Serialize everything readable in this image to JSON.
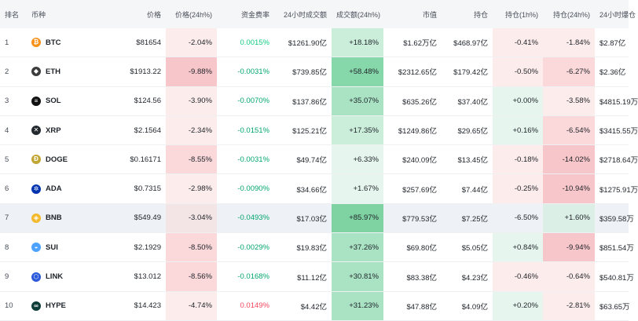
{
  "headers": {
    "rank": "排名",
    "coin": "币种",
    "price": "价格",
    "price_change": "价格(24h%)",
    "funding_rate": "资金费率",
    "volume": "24小时成交额",
    "volume_change": "成交额(24h%)",
    "market_cap": "市值",
    "open_interest": "持仓",
    "oi_1h": "持仓(1h%)",
    "oi_24h": "持仓(24h%)",
    "liquidation": "24小时爆仓"
  },
  "colors": {
    "positive": "#0ecb81",
    "negative": "#f6465d",
    "highlight_row": "#eef1f5"
  },
  "rows": [
    {
      "rank": "1",
      "symbol": "BTC",
      "icon": "bitcoin-icon",
      "icon_color": "#f7931a",
      "icon_glyph": "₿",
      "price": "$81654",
      "price_change": "-2.04%",
      "funding_rate": "0.0015%",
      "volume": "$1261.90亿",
      "volume_change": "+18.18%",
      "market_cap": "$1.62万亿",
      "open_interest": "$468.97亿",
      "oi_1h": "-0.41%",
      "oi_24h": "-1.84%",
      "liquidation": "$2.87亿"
    },
    {
      "rank": "2",
      "symbol": "ETH",
      "icon": "ethereum-icon",
      "icon_color": "#3c3c3d",
      "icon_glyph": "◆",
      "price": "$1913.22",
      "price_change": "-9.88%",
      "funding_rate": "-0.0031%",
      "volume": "$739.85亿",
      "volume_change": "+58.48%",
      "market_cap": "$2312.65亿",
      "open_interest": "$179.42亿",
      "oi_1h": "-0.50%",
      "oi_24h": "-6.27%",
      "liquidation": "$2.36亿"
    },
    {
      "rank": "3",
      "symbol": "SOL",
      "icon": "solana-icon",
      "icon_color": "#111111",
      "icon_glyph": "≡",
      "price": "$124.56",
      "price_change": "-3.90%",
      "funding_rate": "-0.0070%",
      "volume": "$137.86亿",
      "volume_change": "+35.07%",
      "market_cap": "$635.26亿",
      "open_interest": "$37.40亿",
      "oi_1h": "+0.00%",
      "oi_24h": "-3.58%",
      "liquidation": "$4815.19万"
    },
    {
      "rank": "4",
      "symbol": "XRP",
      "icon": "xrp-icon",
      "icon_color": "#23292f",
      "icon_glyph": "✕",
      "price": "$2.1564",
      "price_change": "-2.34%",
      "funding_rate": "-0.0151%",
      "volume": "$125.21亿",
      "volume_change": "+17.35%",
      "market_cap": "$1249.86亿",
      "open_interest": "$29.65亿",
      "oi_1h": "+0.16%",
      "oi_24h": "-6.54%",
      "liquidation": "$3415.55万"
    },
    {
      "rank": "5",
      "symbol": "DOGE",
      "icon": "dogecoin-icon",
      "icon_color": "#c2a633",
      "icon_glyph": "Ð",
      "price": "$0.16171",
      "price_change": "-8.55%",
      "funding_rate": "-0.0031%",
      "volume": "$49.74亿",
      "volume_change": "+6.33%",
      "market_cap": "$240.09亿",
      "open_interest": "$13.45亿",
      "oi_1h": "-0.18%",
      "oi_24h": "-14.02%",
      "liquidation": "$2718.64万"
    },
    {
      "rank": "6",
      "symbol": "ADA",
      "icon": "cardano-icon",
      "icon_color": "#0033ad",
      "icon_glyph": "✲",
      "price": "$0.7315",
      "price_change": "-2.98%",
      "funding_rate": "-0.0090%",
      "volume": "$34.66亿",
      "volume_change": "+1.67%",
      "market_cap": "$257.69亿",
      "open_interest": "$7.44亿",
      "oi_1h": "-0.25%",
      "oi_24h": "-10.94%",
      "liquidation": "$1275.91万"
    },
    {
      "rank": "7",
      "symbol": "BNB",
      "icon": "bnb-icon",
      "icon_color": "#f3ba2f",
      "icon_glyph": "◈",
      "price": "$549.49",
      "price_change": "-3.04%",
      "funding_rate": "-0.0493%",
      "volume": "$17.03亿",
      "volume_change": "+85.97%",
      "market_cap": "$779.53亿",
      "open_interest": "$7.25亿",
      "oi_1h": "-6.50%",
      "oi_24h": "+1.60%",
      "liquidation": "$359.58万"
    },
    {
      "rank": "8",
      "symbol": "SUI",
      "icon": "sui-icon",
      "icon_color": "#4da2ff",
      "icon_glyph": "◒",
      "price": "$2.1929",
      "price_change": "-8.50%",
      "funding_rate": "-0.0029%",
      "volume": "$19.83亿",
      "volume_change": "+37.26%",
      "market_cap": "$69.80亿",
      "open_interest": "$5.05亿",
      "oi_1h": "+0.84%",
      "oi_24h": "-9.94%",
      "liquidation": "$851.54万"
    },
    {
      "rank": "9",
      "symbol": "LINK",
      "icon": "chainlink-icon",
      "icon_color": "#2a5ada",
      "icon_glyph": "⬡",
      "price": "$13.012",
      "price_change": "-8.56%",
      "funding_rate": "-0.0168%",
      "volume": "$11.12亿",
      "volume_change": "+30.81%",
      "market_cap": "$83.38亿",
      "open_interest": "$4.23亿",
      "oi_1h": "-0.46%",
      "oi_24h": "-0.64%",
      "liquidation": "$540.81万"
    },
    {
      "rank": "10",
      "symbol": "HYPE",
      "icon": "hyperliquid-icon",
      "icon_color": "#0f3d3a",
      "icon_glyph": "∞",
      "price": "$14.423",
      "price_change": "-4.74%",
      "funding_rate": "0.0149%",
      "volume": "$4.42亿",
      "volume_change": "+31.23%",
      "market_cap": "$47.88亿",
      "open_interest": "$4.09亿",
      "oi_1h": "+0.20%",
      "oi_24h": "-2.81%",
      "liquidation": "$63.65万"
    }
  ]
}
